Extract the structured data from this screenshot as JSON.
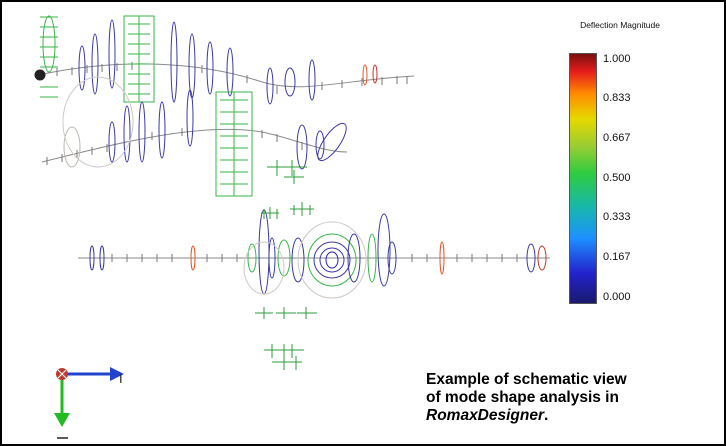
{
  "legend": {
    "title": "Deflection Magnitude",
    "ticks": [
      "1.000",
      "0.833",
      "0.667",
      "0.500",
      "0.333",
      "0.167",
      "0.000"
    ],
    "colors": [
      "#7a1010",
      "#e51c1c",
      "#ff8c00",
      "#e6d800",
      "#2ecc40",
      "#17b6b0",
      "#1e90ff",
      "#2222cc",
      "#1a1a6e"
    ]
  },
  "axes": {
    "horizontal_label": "I",
    "vertical_label": ""
  },
  "caption": {
    "line1": "Example of schematic view",
    "line2": "of mode shape analysis in",
    "product": "RomaxDesigner",
    "end": "."
  }
}
